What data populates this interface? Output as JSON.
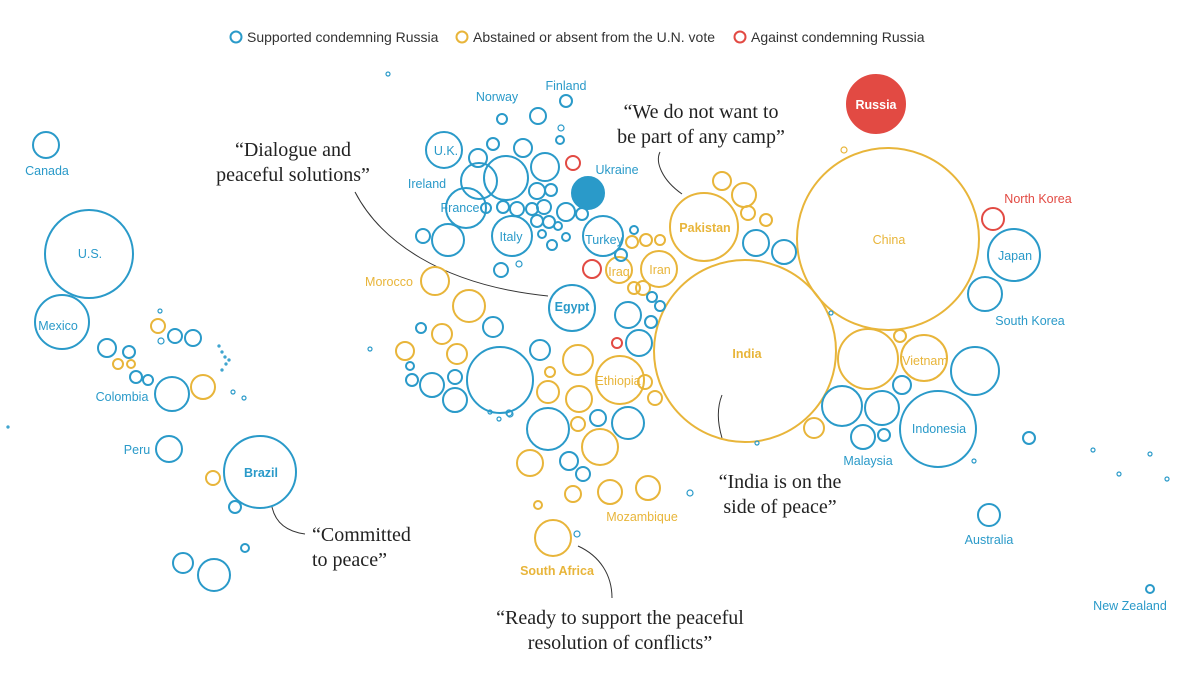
{
  "chart_data": {
    "type": "bubble",
    "colors": {
      "supported": "#2a9ac9",
      "abstained": "#e8b53a",
      "against": "#e24a43"
    },
    "legend": [
      {
        "key": "supported",
        "label": "Supported condemning Russia"
      },
      {
        "key": "abstained",
        "label": "Abstained or absent from the U.N. vote"
      },
      {
        "key": "against",
        "label": "Against condemning Russia"
      }
    ],
    "labels": {
      "russia": "Russia",
      "china": "China",
      "india": "India",
      "us": "U.S.",
      "canada": "Canada",
      "mexico": "Mexico",
      "colombia": "Colombia",
      "peru": "Peru",
      "brazil": "Brazil",
      "uk": "U.K.",
      "ireland": "Ireland",
      "france": "France",
      "italy": "Italy",
      "norway": "Norway",
      "finland": "Finland",
      "ukraine": "Ukraine",
      "turkey": "Turkey",
      "iraq": "Iraq",
      "iran": "Iran",
      "egypt": "Egypt",
      "morocco": "Morocco",
      "ethiopia": "Ethiopia",
      "mozambique": "Mozambique",
      "south_africa": "South Africa",
      "pakistan": "Pakistan",
      "north_korea": "North Korea",
      "japan": "Japan",
      "south_korea": "South Korea",
      "vietnam": "Vietnam",
      "malaysia": "Malaysia",
      "indonesia": "Indonesia",
      "australia": "Australia",
      "new_zealand": "New Zealand"
    },
    "quotes": {
      "dialogue_1": "“Dialogue and",
      "dialogue_2": "peaceful solutions”",
      "camp_1": "“We do not want to",
      "camp_2": "be part of any camp”",
      "india_1": "“India is on the",
      "india_2": "side of peace”",
      "committed_1": "“Committed",
      "committed_2": "to peace”",
      "ready_1": "“Ready to support the peaceful",
      "ready_2": "resolution of conflicts”"
    }
  }
}
